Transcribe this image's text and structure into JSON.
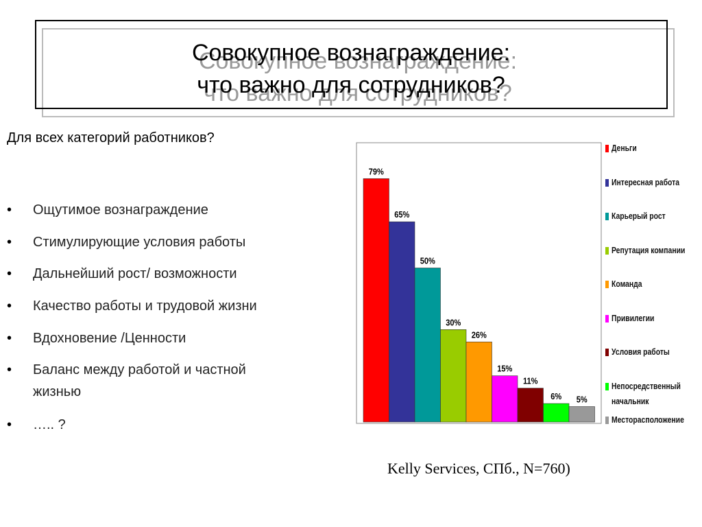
{
  "header": {
    "title": [
      "Совокупное вознаграждение:",
      "что важно для сотрудников?"
    ]
  },
  "question": "Для всех категорий работников?",
  "bullet": "•",
  "items": [
    "Ощутимое вознаграждение",
    "Стимулирующие условия работы",
    "Дальнейший рост/ возможности",
    "Качество работы и трудовой жизни",
    "Вдохновение /Ценности",
    "Баланс между работой и частной жизнью",
    "….. ?"
  ],
  "source": "Kelly Services, СПб.,  N=760)",
  "chart_data": {
    "type": "bar",
    "categories": [
      "Деньги",
      "Интересная работа",
      "Карьерый рост",
      "Репутация компании",
      "Команда",
      "Привилегии",
      "Условия работы",
      "Непосредственный начальник",
      "Месторасположение"
    ],
    "values": [
      79,
      65,
      50,
      30,
      26,
      15,
      11,
      6,
      5
    ],
    "value_labels": [
      "79%",
      "65%",
      "50%",
      "30%",
      "26%",
      "15%",
      "11%",
      "6%",
      "5%"
    ],
    "colors": [
      "#ff0000",
      "#333399",
      "#009999",
      "#99cc00",
      "#ff9900",
      "#ff00ff",
      "#800000",
      "#00ff00",
      "#999999"
    ]
  }
}
